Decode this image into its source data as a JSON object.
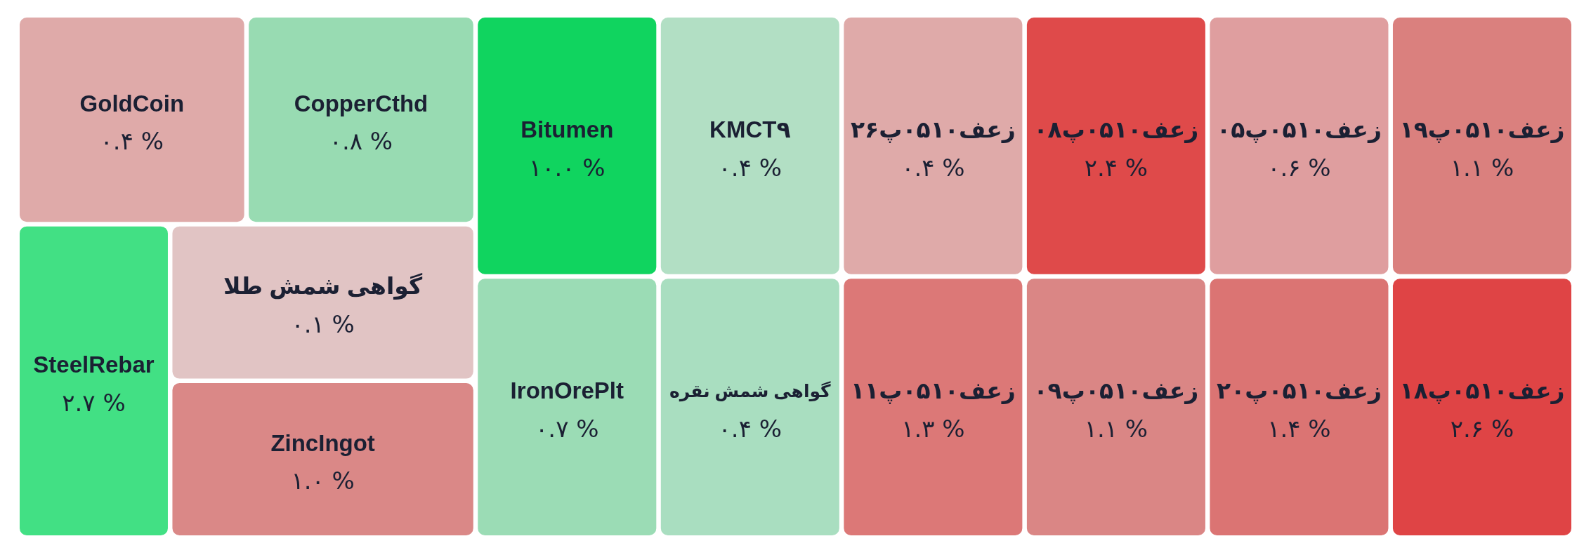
{
  "chart_data": {
    "type": "other",
    "categories": [
      "GoldCoin",
      "CopperCthd",
      "SteelRebar",
      "گواهی شمش طلا",
      "ZincIngot",
      "Bitumen",
      "IronOrePlt",
      "KMCT۹",
      "گواهی شمش نقره",
      "زعف۰۵۱۰پ۲۶",
      "زعف۰۵۱۰پ۱۱",
      "زعف۰۵۱۰پ۰۸",
      "زعف۰۵۱۰پ۰۹",
      "زعف۰۵۱۰پ۰۵",
      "زعف۰۵۱۰پ۲۰",
      "زعف۰۵۱۰پ۱۹",
      "زعف۰۵۱۰پ۱۸"
    ],
    "values": [
      0.4,
      0.8,
      2.7,
      0.1,
      1.0,
      10.0,
      0.7,
      0.4,
      0.4,
      0.4,
      1.3,
      2.4,
      1.1,
      0.6,
      1.4,
      1.1,
      2.6
    ],
    "value_labels": [
      "۰.۴ %",
      "۰.۸ %",
      "۲.۷ %",
      "۰.۱ %",
      "۱.۰ %",
      "۱۰.۰ %",
      "۰.۷ %",
      "۰.۴ %",
      "۰.۴ %",
      "۰.۴ %",
      "۱.۳ %",
      "۲.۴ %",
      "۱.۱ %",
      "۰.۶ %",
      "۱.۴ %",
      "۱.۱ %",
      "۲.۶ %"
    ],
    "colors": [
      "#dfaaa9",
      "#98dbb2",
      "#42e084",
      "#e1c4c4",
      "#da8887",
      "#10d45f",
      "#9bdcb5",
      "#b2dfc4",
      "#a9dec0",
      "#dfaaa9",
      "#dc7877",
      "#df4a4a",
      "#da8685",
      "#df9e9f",
      "#db7473",
      "#da807e",
      "#df4445"
    ]
  }
}
